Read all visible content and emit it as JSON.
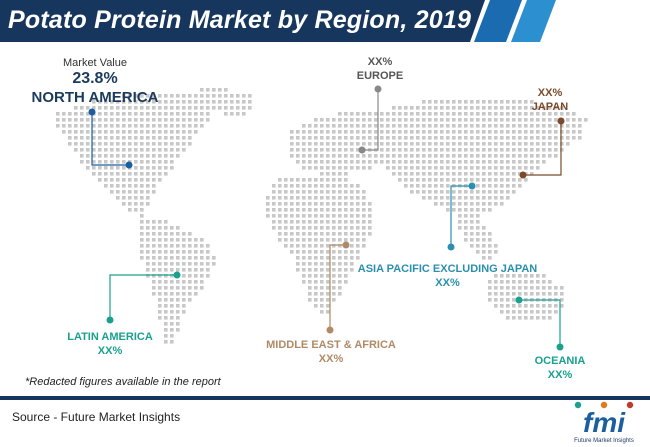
{
  "title": "Potato Protein Market by Region, 2019",
  "regions": {
    "north_america": {
      "caption": "Market Value",
      "value": "23.8%",
      "name": "NORTH AMERICA"
    },
    "europe": {
      "value": "XX%",
      "name": "EUROPE"
    },
    "japan": {
      "value": "XX%",
      "name": "JAPAN"
    },
    "asia_pacific": {
      "name": "ASIA PACIFIC EXCLUDING JAPAN",
      "value": "XX%"
    },
    "latin_america": {
      "name": "LATIN AMERICA",
      "value": "XX%"
    },
    "middle_east_africa": {
      "name": "MIDDLE EAST & AFRICA",
      "value": "XX%"
    },
    "oceania": {
      "name": "OCEANIA",
      "value": "XX%"
    }
  },
  "note": "*Redacted figures available in the report",
  "source": "Source - Future Market Insights",
  "logo": {
    "letters": "fmi",
    "tagline": "Future Market Insights"
  },
  "colors": {
    "banner": "#17365d",
    "north_america": "#1b5fa0",
    "europe": "#888888",
    "japan": "#7a4a2a",
    "asia_pacific": "#2b8fb0",
    "latin_america": "#1aa08f",
    "middle_east_africa": "#b08a66",
    "oceania": "#1aa08f",
    "map_dots": "#c8c8c8"
  }
}
